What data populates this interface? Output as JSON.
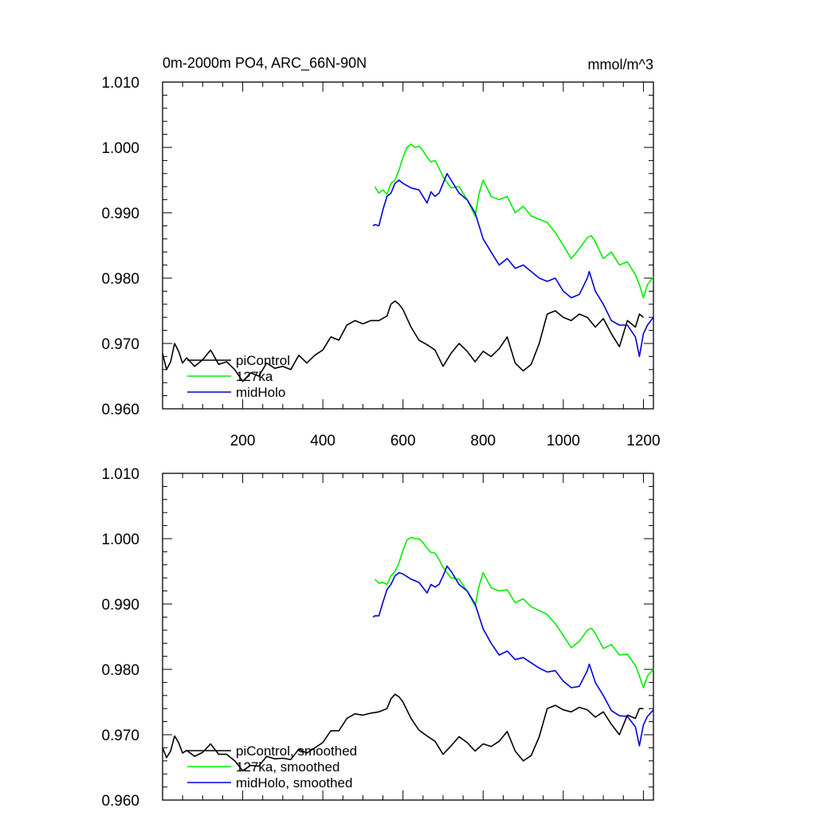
{
  "chart_data": [
    {
      "type": "line",
      "title": "0m-2000m PO4, ARC_66N-90N",
      "units": "mmol/m^3",
      "xlim": [
        0,
        1225
      ],
      "ylim": [
        0.96,
        1.01
      ],
      "xticks": [
        200,
        400,
        600,
        800,
        1000,
        1200
      ],
      "xtick_labels": [
        "200",
        "400",
        "600",
        "800",
        "1000",
        "1200"
      ],
      "yticks": [
        0.96,
        0.97,
        0.98,
        0.99,
        1.0,
        1.01
      ],
      "ytick_labels": [
        "0.960",
        "0.970",
        "0.980",
        "0.990",
        "1.000",
        "1.010"
      ],
      "legend_position": "bottom-left",
      "series": [
        {
          "name": "piControl",
          "color": "#000000",
          "x": [
            0,
            10,
            20,
            30,
            40,
            50,
            60,
            80,
            100,
            120,
            140,
            160,
            180,
            200,
            220,
            240,
            260,
            280,
            300,
            320,
            340,
            360,
            380,
            400,
            420,
            440,
            460,
            480,
            500,
            520,
            540,
            560,
            570,
            580,
            590,
            600,
            620,
            640,
            660,
            680,
            700,
            720,
            740,
            760,
            780,
            800,
            820,
            840,
            860,
            880,
            900,
            920,
            940,
            960,
            980,
            1000,
            1020,
            1040,
            1060,
            1080,
            1100,
            1120,
            1140,
            1160,
            1180,
            1190,
            1200
          ],
          "y": [
            0.9685,
            0.966,
            0.9672,
            0.97,
            0.9688,
            0.967,
            0.9678,
            0.9665,
            0.9675,
            0.969,
            0.9668,
            0.9672,
            0.966,
            0.9642,
            0.9655,
            0.965,
            0.967,
            0.9662,
            0.9665,
            0.966,
            0.9682,
            0.967,
            0.9682,
            0.969,
            0.971,
            0.9705,
            0.9728,
            0.9735,
            0.973,
            0.9735,
            0.9735,
            0.9742,
            0.976,
            0.9765,
            0.976,
            0.9752,
            0.9725,
            0.9705,
            0.9698,
            0.969,
            0.9665,
            0.9685,
            0.97,
            0.9688,
            0.9672,
            0.9688,
            0.968,
            0.9692,
            0.971,
            0.967,
            0.9658,
            0.9668,
            0.97,
            0.9745,
            0.975,
            0.974,
            0.9735,
            0.9745,
            0.974,
            0.9725,
            0.9738,
            0.9715,
            0.9695,
            0.9735,
            0.9725,
            0.9745,
            0.974
          ]
        },
        {
          "name": "127ka",
          "color": "#00ee00",
          "x": [
            530,
            540,
            550,
            560,
            570,
            580,
            590,
            600,
            610,
            620,
            630,
            640,
            650,
            660,
            670,
            680,
            690,
            700,
            720,
            740,
            760,
            780,
            790,
            800,
            820,
            840,
            860,
            880,
            900,
            920,
            940,
            960,
            980,
            1000,
            1020,
            1040,
            1060,
            1070,
            1080,
            1100,
            1120,
            1140,
            1160,
            1180,
            1190,
            1200,
            1210,
            1225
          ],
          "y": [
            0.994,
            0.993,
            0.9935,
            0.9928,
            0.9945,
            0.995,
            0.9965,
            0.9985,
            1.0,
            1.0005,
            1.0,
            1.0002,
            0.9995,
            0.9985,
            0.9978,
            0.998,
            0.9968,
            0.9955,
            0.9938,
            0.994,
            0.992,
            0.9895,
            0.993,
            0.995,
            0.9925,
            0.992,
            0.9925,
            0.99,
            0.991,
            0.9895,
            0.989,
            0.9885,
            0.987,
            0.985,
            0.983,
            0.9845,
            0.9862,
            0.9865,
            0.9855,
            0.983,
            0.984,
            0.982,
            0.9825,
            0.9805,
            0.979,
            0.977,
            0.979,
            0.9802
          ]
        },
        {
          "name": "midHolo",
          "color": "#0000dd",
          "x": [
            525,
            530,
            540,
            550,
            560,
            570,
            580,
            590,
            600,
            620,
            640,
            660,
            670,
            680,
            690,
            700,
            710,
            720,
            740,
            760,
            780,
            800,
            820,
            840,
            860,
            880,
            900,
            920,
            940,
            960,
            980,
            1000,
            1020,
            1040,
            1060,
            1065,
            1080,
            1100,
            1120,
            1140,
            1160,
            1180,
            1190,
            1200,
            1210,
            1225
          ],
          "y": [
            0.988,
            0.9882,
            0.988,
            0.9905,
            0.9925,
            0.993,
            0.9945,
            0.995,
            0.9945,
            0.9938,
            0.9935,
            0.9915,
            0.9932,
            0.9925,
            0.993,
            0.9945,
            0.996,
            0.995,
            0.993,
            0.992,
            0.99,
            0.986,
            0.984,
            0.982,
            0.983,
            0.9815,
            0.982,
            0.981,
            0.98,
            0.9795,
            0.98,
            0.978,
            0.977,
            0.9775,
            0.98,
            0.981,
            0.978,
            0.976,
            0.9735,
            0.9728,
            0.9728,
            0.971,
            0.968,
            0.9715,
            0.9728,
            0.974
          ]
        }
      ]
    },
    {
      "type": "line",
      "title": "",
      "xlim": [
        0,
        1225
      ],
      "ylim": [
        0.96,
        1.01
      ],
      "yticks": [
        0.96,
        0.97,
        0.98,
        0.99,
        1.0,
        1.01
      ],
      "ytick_labels": [
        "0.960",
        "0.970",
        "0.980",
        "0.990",
        "1.000",
        "1.010"
      ],
      "legend_position": "bottom-left",
      "series": [
        {
          "name": "piControl, smoothed",
          "color": "#000000",
          "x": [
            0,
            10,
            20,
            30,
            40,
            50,
            60,
            80,
            100,
            120,
            140,
            160,
            180,
            200,
            220,
            240,
            260,
            280,
            300,
            320,
            340,
            360,
            380,
            400,
            420,
            440,
            460,
            480,
            500,
            520,
            540,
            560,
            570,
            580,
            590,
            600,
            620,
            640,
            660,
            680,
            700,
            720,
            740,
            760,
            780,
            800,
            820,
            840,
            860,
            880,
            900,
            920,
            940,
            960,
            980,
            1000,
            1020,
            1040,
            1060,
            1080,
            1100,
            1120,
            1140,
            1160,
            1180,
            1190,
            1200
          ],
          "y": [
            0.968,
            0.9665,
            0.9675,
            0.9698,
            0.9688,
            0.9672,
            0.9676,
            0.9667,
            0.9673,
            0.9686,
            0.967,
            0.967,
            0.966,
            0.9645,
            0.9653,
            0.9652,
            0.9667,
            0.9663,
            0.9664,
            0.9662,
            0.9678,
            0.9672,
            0.968,
            0.9688,
            0.9706,
            0.9706,
            0.9725,
            0.9732,
            0.973,
            0.9733,
            0.9735,
            0.974,
            0.9755,
            0.9762,
            0.9758,
            0.975,
            0.9725,
            0.9707,
            0.9698,
            0.969,
            0.967,
            0.9683,
            0.9697,
            0.9688,
            0.9675,
            0.9686,
            0.9682,
            0.969,
            0.9705,
            0.9675,
            0.966,
            0.9668,
            0.9697,
            0.974,
            0.9745,
            0.9738,
            0.9735,
            0.9742,
            0.9738,
            0.9727,
            0.9735,
            0.9716,
            0.97,
            0.973,
            0.9725,
            0.974,
            0.974
          ]
        },
        {
          "name": "127ka, smoothed",
          "color": "#00ee00",
          "x": [
            530,
            540,
            550,
            560,
            570,
            580,
            590,
            600,
            610,
            620,
            630,
            640,
            650,
            660,
            670,
            680,
            690,
            700,
            720,
            740,
            760,
            780,
            790,
            800,
            820,
            840,
            860,
            880,
            900,
            920,
            940,
            960,
            980,
            1000,
            1020,
            1040,
            1060,
            1070,
            1080,
            1100,
            1120,
            1140,
            1160,
            1180,
            1190,
            1200,
            1210,
            1225
          ],
          "y": [
            0.9938,
            0.9932,
            0.9933,
            0.993,
            0.9943,
            0.995,
            0.9963,
            0.9982,
            0.9998,
            1.0002,
            1.0,
            1.0,
            0.9994,
            0.9985,
            0.9979,
            0.9978,
            0.9968,
            0.9956,
            0.994,
            0.9938,
            0.992,
            0.9897,
            0.9928,
            0.9948,
            0.9925,
            0.992,
            0.9922,
            0.9902,
            0.9908,
            0.9896,
            0.989,
            0.9884,
            0.987,
            0.9852,
            0.9833,
            0.9843,
            0.986,
            0.9863,
            0.9855,
            0.9832,
            0.9838,
            0.9822,
            0.9823,
            0.9806,
            0.979,
            0.9772,
            0.979,
            0.98
          ]
        },
        {
          "name": "midHolo, smoothed",
          "color": "#0000dd",
          "x": [
            525,
            530,
            540,
            550,
            560,
            570,
            580,
            590,
            600,
            620,
            640,
            660,
            670,
            680,
            690,
            700,
            710,
            720,
            740,
            760,
            780,
            800,
            820,
            840,
            860,
            880,
            900,
            920,
            940,
            960,
            980,
            1000,
            1020,
            1040,
            1060,
            1065,
            1080,
            1100,
            1120,
            1140,
            1160,
            1180,
            1190,
            1200,
            1210,
            1225
          ],
          "y": [
            0.988,
            0.9882,
            0.9882,
            0.9903,
            0.9922,
            0.993,
            0.9943,
            0.9948,
            0.9946,
            0.9938,
            0.9933,
            0.9917,
            0.993,
            0.9926,
            0.993,
            0.9943,
            0.9958,
            0.995,
            0.993,
            0.992,
            0.99,
            0.9862,
            0.984,
            0.9822,
            0.9828,
            0.9815,
            0.9818,
            0.981,
            0.9802,
            0.9796,
            0.9798,
            0.9782,
            0.9772,
            0.9774,
            0.9798,
            0.9808,
            0.978,
            0.976,
            0.9737,
            0.9729,
            0.9728,
            0.9712,
            0.9683,
            0.9715,
            0.9728,
            0.9738
          ]
        }
      ]
    }
  ]
}
